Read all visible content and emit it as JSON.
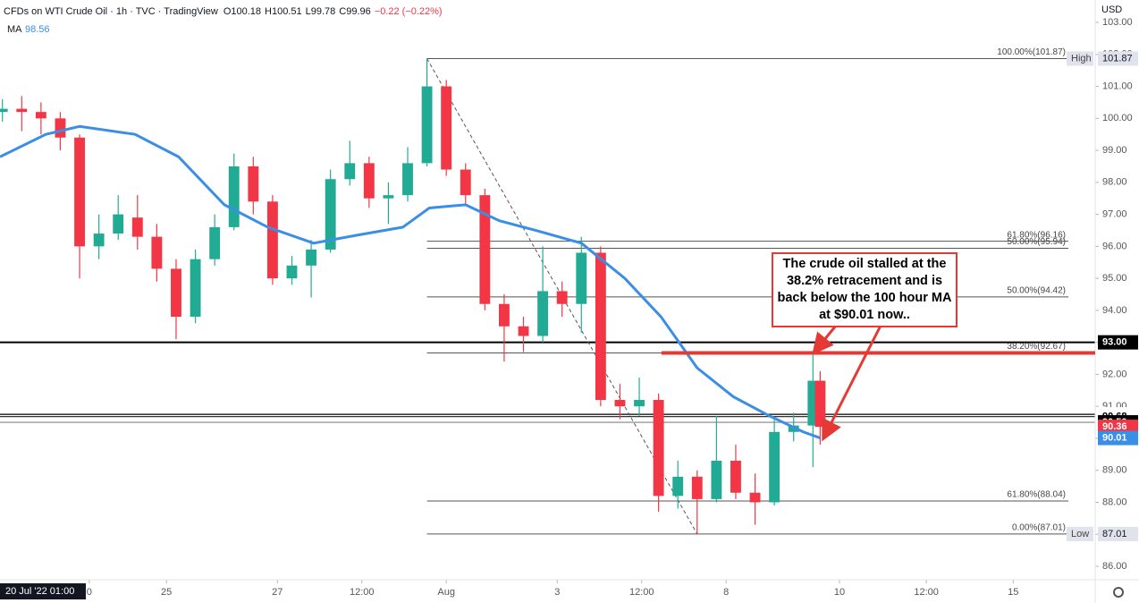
{
  "chart_data": {
    "type": "candlestick",
    "title": "CFDs on WTI Crude Oil · 1h · TVC · TradingView",
    "ohlc_legend": [
      "O100.18",
      "H100.51",
      "L99.78",
      "C99.96",
      "−0.22 (−0.22%)"
    ],
    "indicator": {
      "name": "MA",
      "value": 98.56
    },
    "currency": "USD",
    "crosshair_label": "20 Jul '22 01:00",
    "up_color": "#22ab94",
    "down_color": "#f23645",
    "x": [
      1,
      9,
      17,
      25,
      33,
      41,
      49,
      57,
      65,
      73,
      81,
      89,
      97,
      105,
      113,
      121,
      129,
      137,
      145,
      153,
      161,
      169,
      177,
      185,
      193,
      201,
      209,
      217,
      225,
      233,
      241,
      249,
      257,
      265,
      273,
      281,
      289,
      297,
      305,
      313,
      321,
      329,
      337,
      340
    ],
    "open": [
      100.2,
      100.3,
      100.2,
      100.0,
      99.4,
      96.0,
      96.4,
      96.9,
      96.3,
      95.3,
      93.8,
      95.6,
      96.6,
      98.5,
      97.4,
      95.0,
      95.4,
      95.9,
      98.1,
      98.6,
      97.5,
      97.6,
      98.6,
      101.0,
      98.4,
      97.6,
      94.2,
      93.5,
      93.2,
      94.6,
      94.2,
      95.8,
      91.2,
      91.0,
      91.2,
      88.2,
      88.8,
      88.1,
      89.3,
      88.3,
      88.0,
      90.2,
      90.4,
      91.8
    ],
    "high": [
      100.6,
      100.7,
      100.5,
      100.2,
      99.5,
      97.0,
      97.6,
      97.6,
      96.7,
      95.6,
      95.9,
      97.0,
      98.9,
      98.8,
      97.6,
      95.7,
      96.2,
      98.4,
      99.3,
      98.8,
      98.0,
      99.1,
      101.87,
      101.2,
      98.6,
      97.8,
      94.5,
      93.8,
      96.0,
      94.9,
      96.3,
      96.0,
      91.7,
      91.9,
      91.4,
      89.3,
      89.0,
      90.7,
      89.8,
      88.9,
      90.6,
      90.8,
      92.67,
      92.1
    ],
    "low": [
      99.9,
      99.6,
      99.5,
      99.0,
      95.0,
      95.6,
      96.2,
      95.9,
      94.9,
      93.1,
      93.6,
      95.4,
      96.5,
      97.0,
      94.8,
      94.8,
      94.4,
      95.8,
      97.9,
      97.2,
      96.7,
      97.4,
      98.5,
      98.2,
      97.3,
      94.0,
      92.4,
      92.7,
      93.0,
      93.8,
      93.3,
      91.0,
      90.6,
      90.7,
      87.7,
      87.8,
      87.01,
      88.0,
      88.1,
      87.3,
      87.9,
      89.9,
      89.1,
      89.8
    ],
    "close": [
      100.3,
      100.2,
      100.0,
      99.4,
      96.0,
      96.4,
      97.0,
      96.3,
      95.3,
      93.8,
      95.6,
      96.6,
      98.5,
      97.4,
      95.0,
      95.4,
      95.9,
      98.1,
      98.6,
      97.5,
      97.6,
      98.6,
      101.0,
      98.4,
      97.6,
      94.2,
      93.5,
      93.2,
      94.6,
      94.2,
      95.8,
      91.2,
      91.0,
      91.2,
      88.2,
      88.8,
      88.1,
      89.3,
      88.3,
      88.0,
      90.2,
      90.4,
      91.8,
      90.36
    ],
    "ma": {
      "name": "MA",
      "color": "#3a8ee6",
      "x": [
        0,
        19,
        33,
        56,
        74,
        93,
        111,
        130,
        148,
        167,
        178,
        193,
        207,
        222,
        241,
        259,
        274,
        289,
        304,
        319,
        333,
        340
      ],
      "values": [
        98.8,
        99.5,
        99.75,
        99.5,
        98.8,
        97.3,
        96.6,
        96.1,
        96.35,
        96.6,
        97.2,
        97.3,
        96.8,
        96.5,
        96.1,
        95.0,
        93.8,
        92.2,
        91.3,
        90.7,
        90.2,
        90.01
      ]
    },
    "xlim": [
      0,
      454
    ],
    "xticks": [
      {
        "value": 37,
        "label": "0"
      },
      {
        "value": 69,
        "label": "25"
      },
      {
        "value": 115,
        "label": "27"
      },
      {
        "value": 150,
        "label": "12:00"
      },
      {
        "value": 185,
        "label": "Aug"
      },
      {
        "value": 231,
        "label": "3"
      },
      {
        "value": 266,
        "label": "12:00"
      },
      {
        "value": 301,
        "label": "8"
      },
      {
        "value": 348,
        "label": "10"
      },
      {
        "value": 384,
        "label": "12:00"
      },
      {
        "value": 420,
        "label": "15"
      }
    ],
    "ylim": [
      85.58,
      103.7
    ],
    "yticks": [
      {
        "value": 103,
        "label": "103.00"
      },
      {
        "value": 102,
        "label": "102.00"
      },
      {
        "value": 101,
        "label": "101.00"
      },
      {
        "value": 100,
        "label": "100.00"
      },
      {
        "value": 99,
        "label": "99.00"
      },
      {
        "value": 98,
        "label": "98.00"
      },
      {
        "value": 97,
        "label": "97.00"
      },
      {
        "value": 96,
        "label": "96.00"
      },
      {
        "value": 95,
        "label": "95.00"
      },
      {
        "value": 94,
        "label": "94.00"
      },
      {
        "value": 93,
        "label": "93.00"
      },
      {
        "value": 92,
        "label": "92.00"
      },
      {
        "value": 91,
        "label": "91.00"
      },
      {
        "value": 90,
        "label": "90.00"
      },
      {
        "value": 89,
        "label": "89.00"
      },
      {
        "value": 88,
        "label": "88.00"
      },
      {
        "value": 87,
        "label": "87.00"
      },
      {
        "value": 86,
        "label": "86.00"
      }
    ],
    "levels": [
      {
        "value": 93,
        "label": "93.00",
        "bg": "#000000",
        "fg": "#ffffff",
        "line": "#000000"
      },
      {
        "value": 90.75,
        "label": "90.75",
        "bg": "#ffffff",
        "fg": "#000000",
        "line": "#000000"
      },
      {
        "value": 90.68,
        "label": "90.68",
        "bg": "#ffffff",
        "fg": "#000000",
        "line": "#333333"
      },
      {
        "value": 90.5,
        "label": "90.50",
        "bg": "#000000",
        "fg": "#ffffff",
        "line": "#999999"
      },
      {
        "value": 90.36,
        "label": "90.36",
        "bg": "#f23645",
        "fg": "#ffffff"
      },
      {
        "value": 90.01,
        "label": "90.01",
        "bg": "#3a8ee6",
        "fg": "#ffffff"
      }
    ],
    "fib": [
      {
        "value": 101.87,
        "label": "100.00%(101.87)",
        "tag": "High",
        "price": "101.87"
      },
      {
        "value": 96.16,
        "label": "61.80%(96.16)"
      },
      {
        "value": 95.94,
        "label": "50.00%(95.94)"
      },
      {
        "value": 94.42,
        "label": "50.00%(94.42)"
      },
      {
        "value": 92.67,
        "label": "38.20%(92.67)"
      },
      {
        "value": 88.04,
        "label": "61.80%(88.04)"
      },
      {
        "value": 87.01,
        "label": "0.00%(87.01)",
        "tag": "Low",
        "price": "87.01"
      }
    ],
    "annotation": "The crude oil stalled at the 38.2% retracement and is back below the 100 hour MA at $90.01 now.."
  }
}
